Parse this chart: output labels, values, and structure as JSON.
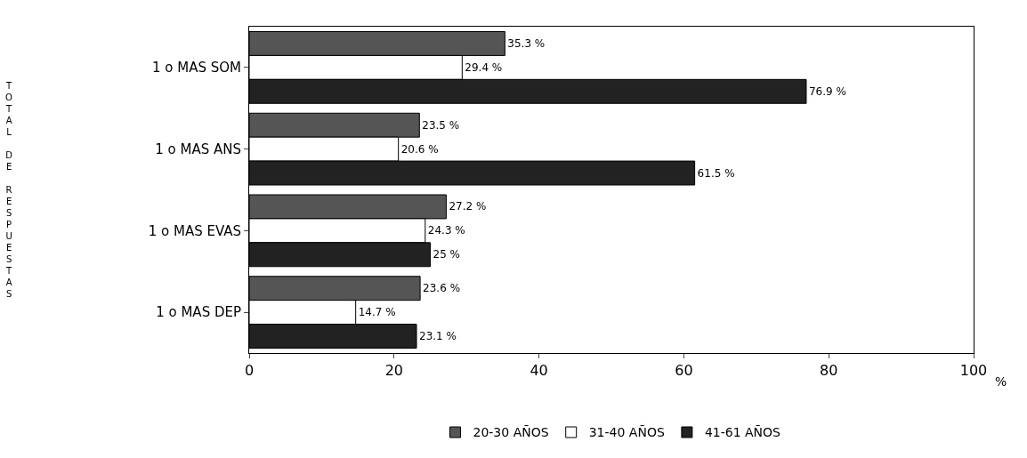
{
  "chart_data": {
    "type": "bar",
    "orientation": "horizontal",
    "ylabel": "TOTAL DE RESPUESTAS",
    "xlabel": "%",
    "categories": [
      "1 o MAS SOM",
      "1 o MAS ANS",
      "1 o MAS EVAS",
      "1 o MAS DEP"
    ],
    "series": [
      {
        "name": "20-30 AÑOS",
        "color": "#555555",
        "values": [
          35.3,
          23.5,
          27.2,
          23.6
        ],
        "value_labels": [
          "35.3 %",
          "23.5 %",
          "27.2 %",
          "23.6 %"
        ]
      },
      {
        "name": "31-40 AÑOS",
        "color": "#ffffff",
        "values": [
          29.4,
          20.6,
          24.3,
          14.7
        ],
        "value_labels": [
          "29.4 %",
          "20.6 %",
          "24.3 %",
          "14.7 %"
        ]
      },
      {
        "name": "41-61 AÑOS",
        "color": "#222222",
        "values": [
          76.9,
          61.5,
          25,
          23.1
        ],
        "value_labels": [
          "76.9 %",
          "61.5 %",
          "25 %",
          "23.1 %"
        ]
      }
    ],
    "xlim": [
      0,
      100
    ],
    "xticks": [
      0,
      20,
      40,
      60,
      80,
      100
    ],
    "legend": "bottom"
  }
}
